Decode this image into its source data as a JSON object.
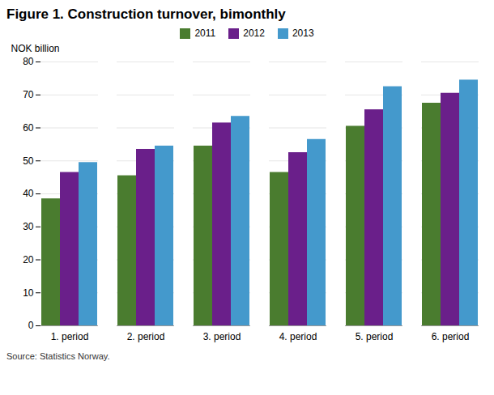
{
  "chart_data": {
    "type": "bar",
    "title": "Figure 1. Construction turnover, bimonthly",
    "ylabel": "NOK billion",
    "caption": "Source: Statistics Norway.",
    "categories": [
      "1. period",
      "2. period",
      "3. period",
      "4. period",
      "5. period",
      "6. period"
    ],
    "series": [
      {
        "name": "2011",
        "color": "#4a7c2f",
        "values": [
          38.5,
          45.5,
          54.5,
          46.5,
          60.5,
          67.5
        ]
      },
      {
        "name": "2012",
        "color": "#6a1f8a",
        "values": [
          46.5,
          53.5,
          61.5,
          52.5,
          65.5,
          70.5
        ]
      },
      {
        "name": "2013",
        "color": "#4499cc",
        "values": [
          49.5,
          54.5,
          63.5,
          56.5,
          72.5,
          74.5
        ]
      }
    ],
    "ylim": [
      0,
      80
    ],
    "yticks": [
      0,
      10,
      20,
      30,
      40,
      50,
      60,
      70,
      80
    ],
    "grid": true,
    "legend": "top"
  }
}
